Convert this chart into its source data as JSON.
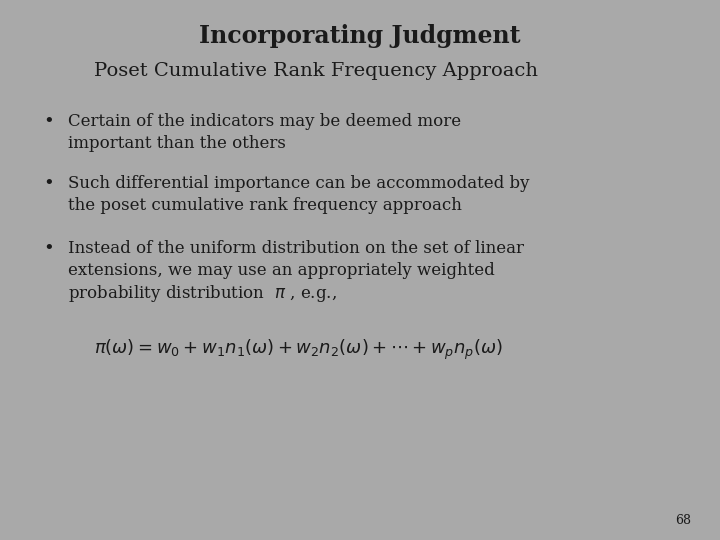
{
  "background_color": "#a9a9a9",
  "title_line1": "Incorporating Judgment",
  "title_line2": "Poset Cumulative Rank Frequency Approach",
  "bullet1_line1": "Certain of the indicators may be deemed more",
  "bullet1_line2": "important than the others",
  "bullet2_line1": "Such differential importance can be accommodated by",
  "bullet2_line2": "the poset cumulative rank frequency approach",
  "bullet3_line1": "Instead of the uniform distribution on the set of linear",
  "bullet3_line2": "extensions, we may use an appropriately weighted",
  "bullet3_line3": "probability distribution",
  "page_number": "68",
  "title1_fontsize": 17,
  "title2_fontsize": 14,
  "bullet_fontsize": 12,
  "formula_fontsize": 13,
  "page_fontsize": 9,
  "text_color": "#1a1a1a"
}
